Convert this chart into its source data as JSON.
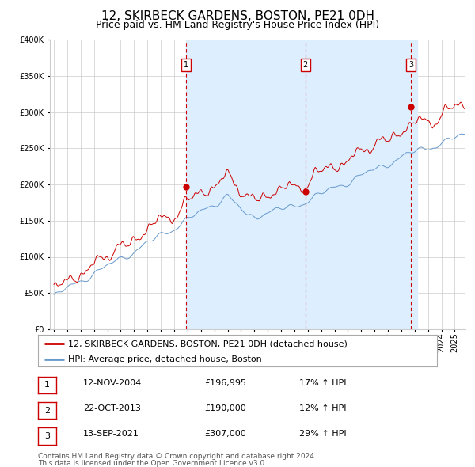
{
  "title": "12, SKIRBECK GARDENS, BOSTON, PE21 0DH",
  "subtitle": "Price paid vs. HM Land Registry's House Price Index (HPI)",
  "legend_line1": "12, SKIRBECK GARDENS, BOSTON, PE21 0DH (detached house)",
  "legend_line2": "HPI: Average price, detached house, Boston",
  "footnote1": "Contains HM Land Registry data © Crown copyright and database right 2024.",
  "footnote2": "This data is licensed under the Open Government Licence v3.0.",
  "transactions": [
    {
      "num": 1,
      "date": "12-NOV-2004",
      "price": 196995,
      "pct": "17%",
      "dir": "↑",
      "label": "HPI",
      "year": 2004.87
    },
    {
      "num": 2,
      "date": "22-OCT-2013",
      "price": 190000,
      "pct": "12%",
      "dir": "↑",
      "label": "HPI",
      "year": 2013.81
    },
    {
      "num": 3,
      "date": "13-SEP-2021",
      "price": 307000,
      "pct": "29%",
      "dir": "↑",
      "label": "HPI",
      "year": 2021.71
    }
  ],
  "red_line_color": "#cc0000",
  "blue_line_color": "#6699cc",
  "dashed_line_color": "#cc0000",
  "dot_color": "#cc0000",
  "shade_color": "#ddeeff",
  "grid_color": "#cccccc",
  "bg_color": "#ffffff",
  "ylim": [
    0,
    400000
  ],
  "yticks": [
    0,
    50000,
    100000,
    150000,
    200000,
    250000,
    300000,
    350000,
    400000
  ],
  "xstart": 1995,
  "xend": 2025,
  "title_fontsize": 11,
  "subtitle_fontsize": 9,
  "tick_fontsize": 7,
  "legend_fontsize": 8,
  "footnote_fontsize": 6.5,
  "table_fontsize": 8
}
